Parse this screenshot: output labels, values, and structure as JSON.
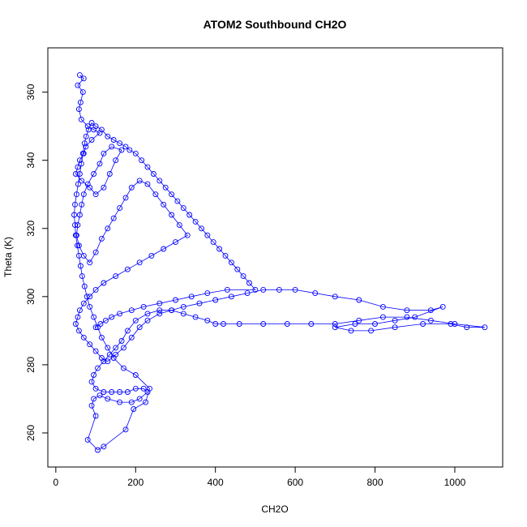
{
  "chart_data": {
    "type": "scatter",
    "title": "ATOM2 Southbound CH2O",
    "xlabel": "CH2O",
    "ylabel": "Theta (K)",
    "xlim": [
      -20,
      1120
    ],
    "ylim": [
      250,
      373
    ],
    "x_ticks": [
      0,
      200,
      400,
      600,
      800,
      1000
    ],
    "y_ticks": [
      260,
      280,
      300,
      320,
      340,
      360
    ],
    "grid": false,
    "legend": "none",
    "point_style": "open-circle",
    "connected_by_lines": true,
    "series": [
      {
        "color": "#0000ff",
        "points": [
          [
            60,
            365
          ],
          [
            70,
            364
          ],
          [
            55,
            362
          ],
          [
            68,
            360
          ],
          [
            62,
            357
          ],
          [
            58,
            355
          ],
          [
            64,
            352
          ],
          [
            80,
            350
          ],
          [
            95,
            349
          ],
          [
            110,
            348
          ],
          [
            90,
            346
          ],
          [
            75,
            344
          ],
          [
            70,
            342
          ],
          [
            60,
            340
          ],
          [
            55,
            338
          ],
          [
            50,
            336
          ],
          [
            65,
            334
          ],
          [
            85,
            332
          ],
          [
            100,
            330
          ],
          [
            120,
            332
          ],
          [
            135,
            336
          ],
          [
            150,
            340
          ],
          [
            165,
            343
          ],
          [
            140,
            344
          ],
          [
            120,
            342
          ],
          [
            110,
            339
          ],
          [
            95,
            336
          ],
          [
            80,
            333
          ],
          [
            70,
            330
          ],
          [
            65,
            327
          ],
          [
            60,
            324
          ],
          [
            55,
            321
          ],
          [
            52,
            318
          ],
          [
            58,
            315
          ],
          [
            70,
            312
          ],
          [
            85,
            310
          ],
          [
            100,
            313
          ],
          [
            115,
            317
          ],
          [
            130,
            320
          ],
          [
            145,
            323
          ],
          [
            160,
            326
          ],
          [
            175,
            329
          ],
          [
            190,
            332
          ],
          [
            210,
            334
          ],
          [
            230,
            333
          ],
          [
            250,
            330
          ],
          [
            270,
            327
          ],
          [
            290,
            324
          ],
          [
            310,
            321
          ],
          [
            330,
            318
          ],
          [
            300,
            316
          ],
          [
            270,
            314
          ],
          [
            240,
            312
          ],
          [
            210,
            310
          ],
          [
            180,
            308
          ],
          [
            150,
            306
          ],
          [
            120,
            304
          ],
          [
            100,
            302
          ],
          [
            85,
            300
          ],
          [
            70,
            298
          ],
          [
            60,
            296
          ],
          [
            55,
            294
          ],
          [
            50,
            292
          ],
          [
            58,
            290
          ],
          [
            70,
            288
          ],
          [
            85,
            286
          ],
          [
            100,
            284
          ],
          [
            115,
            282
          ],
          [
            130,
            281
          ],
          [
            150,
            283
          ],
          [
            170,
            285
          ],
          [
            190,
            288
          ],
          [
            210,
            291
          ],
          [
            230,
            293
          ],
          [
            260,
            295
          ],
          [
            290,
            296
          ],
          [
            320,
            297
          ],
          [
            360,
            298
          ],
          [
            400,
            299
          ],
          [
            440,
            300
          ],
          [
            480,
            301
          ],
          [
            520,
            302
          ],
          [
            560,
            302
          ],
          [
            600,
            302
          ],
          [
            650,
            301
          ],
          [
            700,
            300
          ],
          [
            760,
            299
          ],
          [
            820,
            297
          ],
          [
            880,
            296
          ],
          [
            940,
            296
          ],
          [
            970,
            297
          ],
          [
            900,
            294
          ],
          [
            850,
            293
          ],
          [
            800,
            292
          ],
          [
            750,
            292
          ],
          [
            700,
            291
          ],
          [
            740,
            290
          ],
          [
            790,
            290
          ],
          [
            850,
            291
          ],
          [
            920,
            292
          ],
          [
            990,
            292
          ],
          [
            1030,
            291
          ],
          [
            1075,
            291
          ],
          [
            1000,
            292
          ],
          [
            940,
            293
          ],
          [
            880,
            294
          ],
          [
            820,
            294
          ],
          [
            760,
            293
          ],
          [
            700,
            292
          ],
          [
            640,
            292
          ],
          [
            580,
            292
          ],
          [
            520,
            292
          ],
          [
            460,
            292
          ],
          [
            420,
            292
          ],
          [
            400,
            292
          ],
          [
            380,
            293
          ],
          [
            350,
            294
          ],
          [
            320,
            295
          ],
          [
            290,
            296
          ],
          [
            260,
            296
          ],
          [
            230,
            295
          ],
          [
            200,
            293
          ],
          [
            180,
            290
          ],
          [
            165,
            287
          ],
          [
            150,
            285
          ],
          [
            135,
            283
          ],
          [
            120,
            281
          ],
          [
            105,
            279
          ],
          [
            95,
            277
          ],
          [
            90,
            275
          ],
          [
            100,
            273
          ],
          [
            120,
            272
          ],
          [
            140,
            272
          ],
          [
            160,
            272
          ],
          [
            180,
            272
          ],
          [
            200,
            273
          ],
          [
            220,
            273
          ],
          [
            230,
            272
          ],
          [
            210,
            270
          ],
          [
            190,
            269
          ],
          [
            160,
            269
          ],
          [
            130,
            270
          ],
          [
            110,
            271
          ],
          [
            95,
            270
          ],
          [
            90,
            268
          ],
          [
            100,
            265
          ],
          [
            80,
            258
          ],
          [
            105,
            255
          ],
          [
            120,
            256
          ],
          [
            175,
            261
          ],
          [
            195,
            267
          ],
          [
            225,
            269
          ],
          [
            235,
            273
          ],
          [
            200,
            277
          ],
          [
            170,
            279
          ],
          [
            145,
            282
          ],
          [
            130,
            285
          ],
          [
            115,
            288
          ],
          [
            105,
            291
          ],
          [
            95,
            294
          ],
          [
            85,
            297
          ],
          [
            78,
            300
          ],
          [
            72,
            303
          ],
          [
            66,
            306
          ],
          [
            62,
            309
          ],
          [
            58,
            312
          ],
          [
            54,
            315
          ],
          [
            50,
            318
          ],
          [
            48,
            321
          ],
          [
            46,
            324
          ],
          [
            48,
            327
          ],
          [
            52,
            330
          ],
          [
            56,
            333
          ],
          [
            60,
            336
          ],
          [
            64,
            339
          ],
          [
            68,
            342
          ],
          [
            72,
            345
          ],
          [
            76,
            347
          ],
          [
            82,
            349
          ],
          [
            90,
            351
          ],
          [
            100,
            350
          ],
          [
            115,
            349
          ],
          [
            130,
            347
          ],
          [
            145,
            346
          ],
          [
            160,
            345
          ],
          [
            175,
            344
          ],
          [
            185,
            343
          ],
          [
            200,
            342
          ],
          [
            215,
            340
          ],
          [
            230,
            338
          ],
          [
            245,
            336
          ],
          [
            260,
            334
          ],
          [
            275,
            332
          ],
          [
            290,
            330
          ],
          [
            305,
            328
          ],
          [
            320,
            326
          ],
          [
            335,
            324
          ],
          [
            350,
            322
          ],
          [
            365,
            320
          ],
          [
            380,
            318
          ],
          [
            395,
            316
          ],
          [
            410,
            314
          ],
          [
            425,
            312
          ],
          [
            440,
            310
          ],
          [
            455,
            308
          ],
          [
            470,
            306
          ],
          [
            485,
            304
          ],
          [
            500,
            302
          ],
          [
            430,
            302
          ],
          [
            380,
            301
          ],
          [
            340,
            300
          ],
          [
            300,
            299
          ],
          [
            260,
            298
          ],
          [
            220,
            297
          ],
          [
            190,
            296
          ],
          [
            160,
            295
          ],
          [
            140,
            294
          ],
          [
            125,
            293
          ],
          [
            112,
            292
          ],
          [
            100,
            291
          ]
        ]
      }
    ]
  }
}
